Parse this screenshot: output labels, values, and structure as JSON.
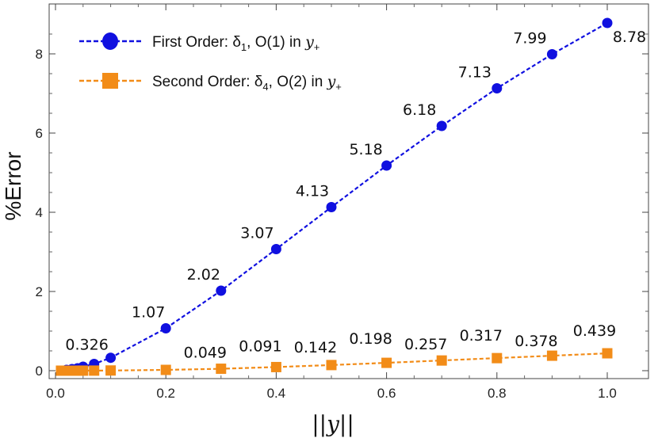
{
  "chart_data": {
    "type": "line",
    "title": "",
    "xlabel": "||y||",
    "ylabel": "%Error",
    "xlim": [
      0,
      1.05
    ],
    "ylim": [
      -0.2,
      9.0
    ],
    "xticks": [
      0.0,
      0.2,
      0.4,
      0.6,
      0.8,
      1.0
    ],
    "xtick_labels": [
      "0.0",
      "0.2",
      "0.4",
      "0.6",
      "0.8",
      "1.0"
    ],
    "yticks": [
      0,
      2,
      4,
      6,
      8
    ],
    "ytick_labels": [
      "0",
      "2",
      "4",
      "6",
      "8"
    ],
    "grid": false,
    "legend_position": "top-left",
    "series": [
      {
        "name": "First Order: δ1, O(1) in y+",
        "legend_parts": {
          "a": "First Order: δ",
          "sub": "1",
          "b": ", O(1) in ",
          "var": "y",
          "varsub": "+"
        },
        "color": "#1010e0",
        "marker": "circle",
        "x": [
          0.01,
          0.02,
          0.03,
          0.04,
          0.05,
          0.07,
          0.1,
          0.2,
          0.3,
          0.4,
          0.5,
          0.6,
          0.7,
          0.8,
          0.9,
          1.0
        ],
        "y": [
          0.0,
          0.02,
          0.04,
          0.06,
          0.1,
          0.17,
          0.326,
          1.07,
          2.02,
          3.07,
          4.13,
          5.18,
          6.18,
          7.13,
          7.99,
          8.78
        ],
        "labels": [
          "",
          "",
          "",
          "",
          "",
          "",
          "0.326",
          "1.07",
          "2.02",
          "3.07",
          "4.13",
          "5.18",
          "6.18",
          "7.13",
          "7.99",
          "8.78"
        ]
      },
      {
        "name": "Second Order: δ4, O(2) in y+",
        "legend_parts": {
          "a": "Second Order: δ",
          "sub": "4",
          "b": ", O(2) in ",
          "var": "y",
          "varsub": "+"
        },
        "color": "#f28c18",
        "marker": "square",
        "x": [
          0.01,
          0.02,
          0.03,
          0.04,
          0.05,
          0.07,
          0.1,
          0.2,
          0.3,
          0.4,
          0.5,
          0.6,
          0.7,
          0.8,
          0.9,
          1.0
        ],
        "y": [
          0.0,
          0.0,
          0.0,
          0.0,
          0.001,
          0.002,
          0.005,
          0.02,
          0.049,
          0.091,
          0.142,
          0.198,
          0.257,
          0.317,
          0.378,
          0.439
        ],
        "labels": [
          "",
          "",
          "",
          "",
          "",
          "",
          "",
          "",
          "0.049",
          "0.091",
          "0.142",
          "0.198",
          "0.257",
          "0.317",
          "0.378",
          "0.439"
        ]
      }
    ]
  }
}
